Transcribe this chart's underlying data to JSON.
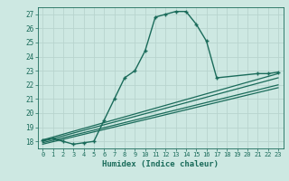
{
  "title": "",
  "xlabel": "Humidex (Indice chaleur)",
  "xlim": [
    -0.5,
    23.5
  ],
  "ylim": [
    17.5,
    27.5
  ],
  "xticks": [
    0,
    1,
    2,
    3,
    4,
    5,
    6,
    7,
    8,
    9,
    10,
    11,
    12,
    13,
    14,
    15,
    16,
    17,
    18,
    19,
    20,
    21,
    22,
    23
  ],
  "yticks": [
    18,
    19,
    20,
    21,
    22,
    23,
    24,
    25,
    26,
    27
  ],
  "background_color": "#cde8e2",
  "grid_color": "#b8d4ce",
  "line_color": "#1a6b5a",
  "series": [
    {
      "x": [
        0,
        1,
        2,
        3,
        4,
        5,
        6,
        7,
        8,
        9,
        10,
        11,
        12,
        13,
        14,
        15,
        16,
        17,
        21,
        22,
        23
      ],
      "y": [
        18.1,
        18.2,
        18.0,
        17.8,
        17.9,
        18.0,
        19.5,
        21.0,
        22.5,
        23.0,
        24.4,
        26.8,
        27.0,
        27.2,
        27.2,
        26.3,
        25.1,
        22.5,
        22.8,
        22.8,
        22.9
      ],
      "with_markers": true
    },
    {
      "x": [
        0,
        23
      ],
      "y": [
        18.0,
        22.5
      ],
      "with_markers": false
    },
    {
      "x": [
        0,
        23
      ],
      "y": [
        17.9,
        22.0
      ],
      "with_markers": false
    },
    {
      "x": [
        0,
        23
      ],
      "y": [
        17.8,
        21.8
      ],
      "with_markers": false
    },
    {
      "x": [
        0,
        23
      ],
      "y": [
        18.1,
        22.8
      ],
      "with_markers": false
    }
  ]
}
